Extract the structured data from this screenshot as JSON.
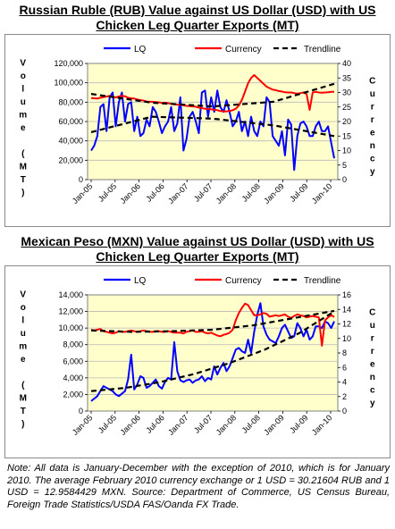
{
  "chart_data": [
    {
      "type": "line",
      "title": "Russian Ruble (RUB) Value against US Dollar (USD) with US Chicken Leg Quarter Exports (MT)",
      "ylabel": "Volume (MT)",
      "y2label": "Currency",
      "ylim": [
        0,
        120000
      ],
      "y2lim": [
        0,
        40
      ],
      "yticks": [
        "0",
        "20,000",
        "40,000",
        "60,000",
        "80,000",
        "100,000",
        "120,000"
      ],
      "y2ticks": [
        "0",
        "5",
        "10",
        "15",
        "20",
        "25",
        "30",
        "35",
        "40"
      ],
      "xticks": [
        "Jan-05",
        "Jul-05",
        "Jan-06",
        "Jul-06",
        "Jan-07",
        "Jul-07",
        "Jan-08",
        "Jul-08",
        "Jan-09",
        "Jul-09",
        "Jan-10"
      ],
      "legend": [
        "LQ",
        "Currency",
        "Trendline"
      ],
      "legend_position": "top",
      "grid": true,
      "series": [
        {
          "name": "LQ",
          "axis": "left",
          "color": "#0000ff",
          "values": [
            30000,
            35000,
            45000,
            75000,
            78000,
            50000,
            85000,
            90000,
            55000,
            80000,
            90000,
            60000,
            78000,
            80000,
            50000,
            65000,
            45000,
            48000,
            62000,
            55000,
            75000,
            70000,
            60000,
            48000,
            55000,
            60000,
            75000,
            50000,
            58000,
            85000,
            30000,
            42000,
            65000,
            70000,
            60000,
            48000,
            90000,
            92000,
            65000,
            85000,
            70000,
            92000,
            75000,
            70000,
            82000,
            70000,
            55000,
            60000,
            70000,
            50000,
            60000,
            45000,
            65000,
            50000,
            45000,
            60000,
            55000,
            85000,
            80000,
            45000,
            40000,
            35000,
            50000,
            25000,
            62000,
            57000,
            10000,
            45000,
            58000,
            60000,
            55000,
            45000,
            45000,
            55000,
            60000,
            50000,
            50000,
            55000,
            38000,
            22000
          ]
        },
        {
          "name": "Currency",
          "axis": "right",
          "color": "#ff0000",
          "values": [
            28.1,
            28.0,
            27.9,
            28.2,
            28.4,
            28.6,
            28.8,
            28.5,
            28.3,
            28.6,
            28.8,
            28.7,
            28.2,
            28.0,
            27.9,
            27.6,
            27.4,
            27.2,
            26.9,
            26.8,
            26.8,
            26.7,
            26.6,
            26.4,
            26.5,
            26.3,
            26.1,
            25.9,
            25.8,
            25.8,
            25.6,
            25.4,
            25.3,
            25.2,
            25.1,
            24.8,
            24.6,
            24.4,
            24.3,
            24.2,
            24.1,
            23.9,
            23.6,
            23.5,
            23.5,
            23.6,
            23.9,
            24.4,
            25.5,
            27.5,
            30.3,
            33.2,
            35.0,
            36.0,
            35.0,
            34.0,
            33.0,
            32.0,
            31.5,
            31.0,
            30.8,
            30.5,
            30.3,
            30.1,
            30.0,
            30.0,
            29.8,
            29.6,
            29.8,
            30.0,
            29.5,
            24.0,
            30.0,
            30.21,
            30.0,
            29.9,
            30.0,
            30.1,
            30.2,
            30.21
          ]
        },
        {
          "name": "Trendline (LQ)",
          "axis": "left",
          "color": "#000000",
          "dashed": true,
          "values": [
            49000,
            65000,
            63000,
            56000,
            45000
          ]
        },
        {
          "name": "Trendline (Currency)",
          "axis": "right",
          "color": "#000000",
          "dashed": true,
          "values": [
            29.5,
            26.5,
            25.2,
            26.8,
            33.0
          ]
        }
      ]
    },
    {
      "type": "line",
      "title": "Mexican Peso (MXN) Value against US Dollar (USD) with US Chicken Leg Quarter Exports (MT)",
      "ylabel": "Volume (MT)",
      "y2label": "Currency",
      "ylim": [
        0,
        14000
      ],
      "y2lim": [
        0,
        16
      ],
      "yticks": [
        "0",
        "2,000",
        "4,000",
        "6,000",
        "8,000",
        "10,000",
        "12,000",
        "14,000"
      ],
      "y2ticks": [
        "0",
        "2",
        "4",
        "6",
        "8",
        "10",
        "12",
        "14",
        "16"
      ],
      "xticks": [
        "Jan-05",
        "Jul-05",
        "Jan-06",
        "Jul-06",
        "Jan-07",
        "Jul-07",
        "Jan-08",
        "Jul-08",
        "Jan-09",
        "Jul-09",
        "Jan-10"
      ],
      "legend": [
        "LQ",
        "Currency",
        "Trendline"
      ],
      "legend_position": "top",
      "grid": true,
      "series": [
        {
          "name": "LQ",
          "axis": "left",
          "color": "#0000ff",
          "values": [
            1200,
            1500,
            1800,
            2400,
            3000,
            2800,
            2600,
            2400,
            2000,
            1800,
            2100,
            2400,
            3800,
            6800,
            2600,
            3200,
            4200,
            4000,
            2800,
            3000,
            3400,
            3800,
            3000,
            2700,
            3500,
            4000,
            3800,
            8300,
            4800,
            3700,
            3500,
            3700,
            3800,
            3400,
            3700,
            3800,
            4200,
            3600,
            4000,
            3800,
            5400,
            4400,
            5200,
            5800,
            4800,
            5400,
            6400,
            7400,
            7600,
            7200,
            7000,
            8600,
            7000,
            9600,
            11600,
            13000,
            10200,
            9200,
            8600,
            8400,
            8200,
            9000,
            10000,
            10400,
            9600,
            8800,
            9000,
            10600,
            10000,
            9000,
            9800,
            8600,
            9000,
            10200,
            10200,
            10000,
            10800,
            10600,
            10000,
            10800
          ]
        },
        {
          "name": "Currency",
          "axis": "right",
          "color": "#ff0000",
          "values": [
            11.2,
            11.1,
            11.2,
            11.3,
            11.0,
            10.9,
            10.8,
            10.7,
            10.8,
            11.0,
            10.9,
            10.9,
            11.0,
            11.1,
            11.0,
            10.9,
            11.0,
            11.1,
            11.0,
            10.9,
            10.9,
            11.0,
            11.0,
            10.9,
            10.9,
            11.0,
            10.9,
            10.8,
            10.8,
            10.8,
            10.7,
            10.9,
            11.0,
            11.1,
            10.9,
            10.9,
            11.0,
            10.8,
            10.7,
            10.8,
            10.6,
            10.4,
            10.3,
            10.5,
            10.6,
            10.8,
            11.2,
            12.5,
            13.5,
            14.2,
            14.8,
            14.6,
            13.9,
            13.2,
            13.2,
            13.3,
            13.5,
            13.4,
            13.0,
            13.1,
            13.2,
            13.1,
            13.2,
            13.3,
            13.0,
            12.8,
            13.1,
            13.3,
            13.2,
            13.1,
            12.9,
            13.0,
            13.1,
            13.0,
            12.9,
            9.0,
            12.5,
            12.9,
            13.2,
            12.96
          ]
        },
        {
          "name": "Trendline (LQ)",
          "axis": "left",
          "color": "#000000",
          "dashed": true,
          "values": [
            2400,
            2800,
            3500,
            4500,
            5800,
            7400,
            9400,
            12000
          ]
        },
        {
          "name": "Trendline (Currency)",
          "axis": "right",
          "color": "#000000",
          "dashed": true,
          "values": [
            11.1,
            10.9,
            11.0,
            11.2,
            11.8,
            12.8,
            13.8
          ]
        }
      ]
    }
  ],
  "note": "Note: All data is January-December with the exception of 2010, which is for January 2010. The average February 2010 currency exchange or 1 USD = 30.21604 RUB and 1 USD = 12.9584429 MXN. Source: Department of Commerce, US Census Bureau, Foreign Trade Statistics/USDA FAS/Oanda FX Trade."
}
